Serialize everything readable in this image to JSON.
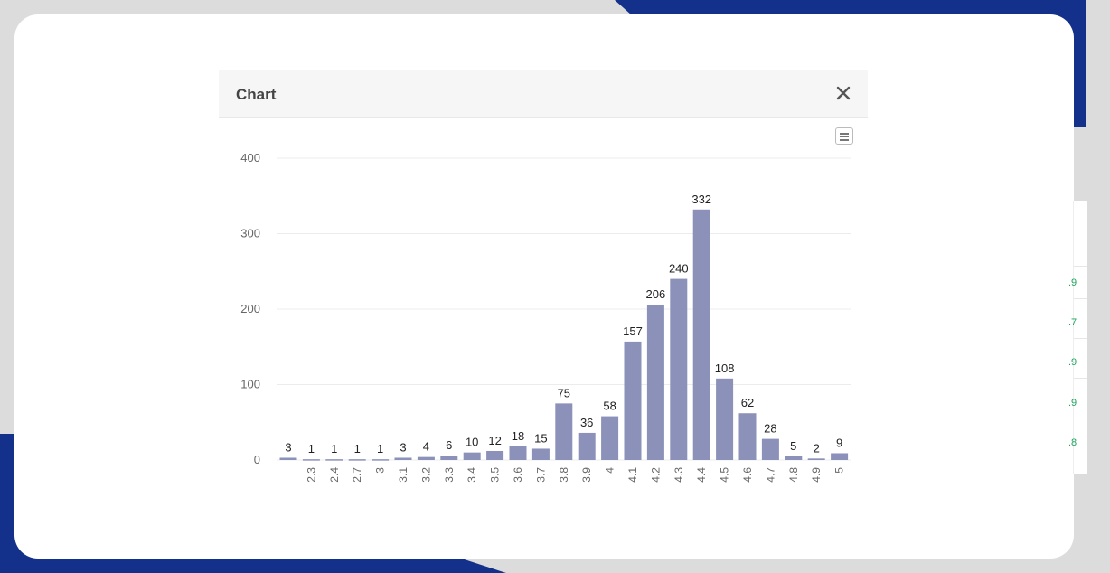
{
  "modal": {
    "title": "Chart",
    "menu_icon": "hamburger-menu-icon",
    "close_icon": "close-icon"
  },
  "colors": {
    "bar": "#8b91b8",
    "accent_bg": "#13308a",
    "side_value": "#1aa35c"
  },
  "side_panel": {
    "values": [
      ".9",
      ".7",
      ".9",
      ".9",
      ".8"
    ]
  },
  "chart_data": {
    "type": "bar",
    "title": "",
    "xlabel": "",
    "ylabel": "",
    "ylim": [
      0,
      400
    ],
    "yticks": [
      0,
      100,
      200,
      300,
      400
    ],
    "grid": true,
    "categories": [
      "",
      "2.3",
      "2.4",
      "2.7",
      "3",
      "3.1",
      "3.2",
      "3.3",
      "3.4",
      "3.5",
      "3.6",
      "3.7",
      "3.8",
      "3.9",
      "4",
      "4.1",
      "4.2",
      "4.3",
      "4.4",
      "4.5",
      "4.6",
      "4.7",
      "4.8",
      "4.9",
      "5"
    ],
    "values": [
      3,
      1,
      1,
      1,
      1,
      3,
      4,
      6,
      10,
      12,
      18,
      15,
      75,
      36,
      58,
      157,
      206,
      240,
      332,
      108,
      62,
      28,
      5,
      2,
      9
    ]
  }
}
